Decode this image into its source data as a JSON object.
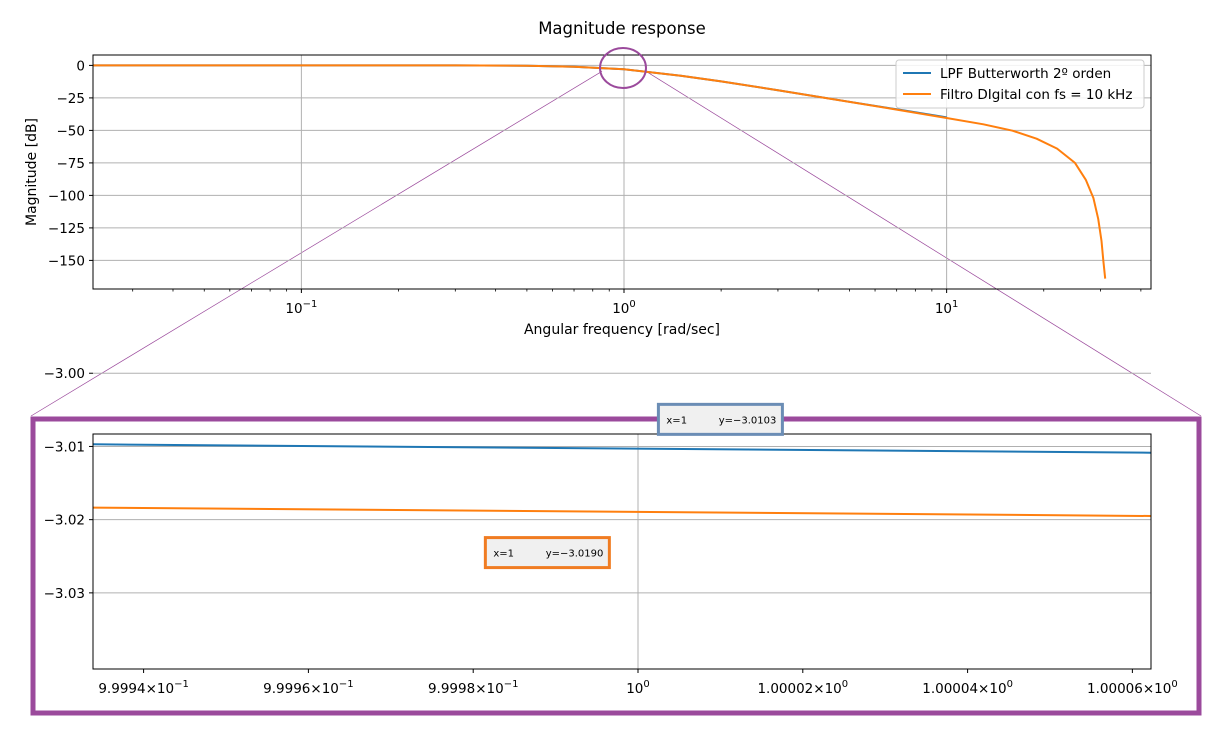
{
  "chart_data": [
    {
      "type": "line",
      "title": "Magnitude response",
      "xlabel": "Angular frequency [rad/sec]",
      "ylabel": "Magnitude [dB]",
      "xscale": "log",
      "xlim": [
        0.0226,
        43
      ],
      "ylim": [
        -172,
        8
      ],
      "grid": true,
      "legend_position": "top-right",
      "xticks": [
        {
          "value": 0.1,
          "base": "10",
          "exp": "−1"
        },
        {
          "value": 1,
          "base": "10",
          "exp": "0"
        },
        {
          "value": 10,
          "base": "10",
          "exp": "1"
        }
      ],
      "yticks": [
        {
          "value": 0,
          "label": "0"
        },
        {
          "value": -25,
          "label": "−25"
        },
        {
          "value": -50,
          "label": "−50"
        },
        {
          "value": -75,
          "label": "−75"
        },
        {
          "value": -100,
          "label": "−100"
        },
        {
          "value": -125,
          "label": "−125"
        },
        {
          "value": -150,
          "label": "−150"
        }
      ],
      "series": [
        {
          "name": "LPF Butterworth 2º orden",
          "color": "#1f77b4",
          "x": [
            0.0226,
            0.05,
            0.1,
            0.2,
            0.3,
            0.5,
            0.7,
            1,
            1.5,
            2,
            3,
            5,
            7,
            10
          ],
          "y": [
            0,
            0,
            0,
            -0.01,
            -0.03,
            -0.26,
            -0.97,
            -3.01,
            -7.9,
            -12.3,
            -19.1,
            -28.0,
            -33.8,
            -40.0
          ]
        },
        {
          "name": "Filtro DIgital con fs = 10 kHz",
          "color": "#ff7f0e",
          "x": [
            0.0226,
            0.05,
            0.1,
            0.2,
            0.3,
            0.5,
            0.7,
            1,
            1.5,
            2,
            3,
            5,
            7,
            10,
            13,
            16,
            19,
            22,
            25,
            27,
            28.5,
            29.5,
            30.2,
            30.6,
            31.0
          ],
          "y": [
            0,
            0,
            0,
            -0.01,
            -0.03,
            -0.26,
            -0.97,
            -3.02,
            -7.9,
            -12.3,
            -19.1,
            -28.1,
            -34.0,
            -40.5,
            -45.3,
            -50.2,
            -56.4,
            -64.0,
            -75.0,
            -88.0,
            -102.0,
            -118.0,
            -135.0,
            -150.0,
            -164.0
          ]
        }
      ],
      "annotation": {
        "marker": "circle",
        "x": 1,
        "y": -3,
        "color": "#9b4a9c"
      }
    },
    {
      "type": "line",
      "title": "",
      "xlabel": "",
      "ylabel": "",
      "xscale": "log",
      "xlim": [
        0.99993386,
        1.00006226
      ],
      "ylim": [
        -3.0404,
        -3.0083
      ],
      "grid": true,
      "frame_color": "#9b4a9c",
      "xticks": [
        {
          "value": 0.99994,
          "mant": "9.9994",
          "exp": "−1"
        },
        {
          "value": 0.99996,
          "mant": "9.9996",
          "exp": "−1"
        },
        {
          "value": 0.99998,
          "mant": "9.9998",
          "exp": "−1"
        },
        {
          "value": 1.0,
          "mant": "",
          "exp": "0"
        },
        {
          "value": 1.00002,
          "mant": "1.00002",
          "exp": "0"
        },
        {
          "value": 1.00004,
          "mant": "1.00004",
          "exp": "0"
        },
        {
          "value": 1.00006,
          "mant": "1.00006",
          "exp": "0"
        }
      ],
      "yticks": [
        {
          "value": -3.0,
          "label": "−3.00"
        },
        {
          "value": -3.01,
          "label": "−3.01"
        },
        {
          "value": -3.02,
          "label": "−3.02"
        },
        {
          "value": -3.03,
          "label": "−3.03"
        }
      ],
      "series": [
        {
          "name": "LPF Butterworth 2º orden",
          "color": "#1f77b4",
          "x": [
            0.99993386,
            1.00006226
          ],
          "y": [
            -3.00971,
            -3.01085
          ]
        },
        {
          "name": "Filtro DIgital con fs = 10 kHz",
          "color": "#ff7f0e",
          "x": [
            0.99993386,
            1.00006226
          ],
          "y": [
            -3.01836,
            -3.0195
          ]
        }
      ],
      "labels": [
        {
          "x_text": "x=1",
          "y_text": "y=−3.0103",
          "x": 1.00001,
          "y": -3.0063,
          "border": "#6b8db5"
        },
        {
          "x_text": "x=1",
          "y_text": "y=−3.0190",
          "x": 0.999989,
          "y": -3.0245,
          "border": "#f07c22"
        }
      ]
    }
  ]
}
